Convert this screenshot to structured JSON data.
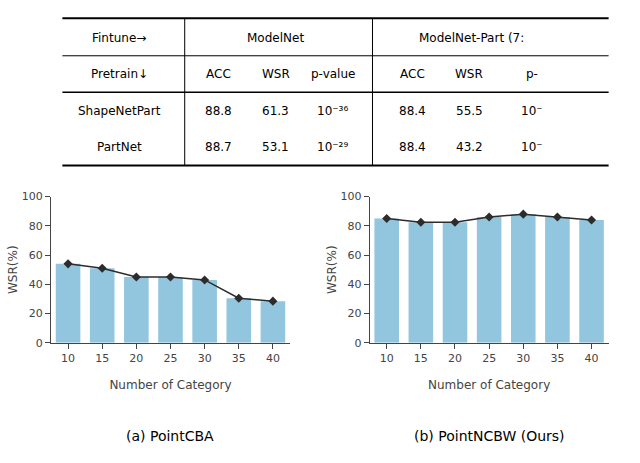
{
  "chart_data": [
    {
      "type": "table",
      "header_rows": [
        [
          "Fintune→",
          "ModelNet",
          "ModelNet-Part (7:"
        ],
        [
          "Pretrain↓",
          "ACC",
          "WSR",
          "p-value",
          "ACC",
          "WSR",
          "p-"
        ]
      ],
      "rows": [
        [
          "ShapeNetPart",
          "88.8",
          "61.3",
          "10⁻³⁶",
          "88.4",
          "55.5",
          "10⁻"
        ],
        [
          "PartNet",
          "88.7",
          "53.1",
          "10⁻²⁹",
          "88.4",
          "43.2",
          "10⁻"
        ]
      ]
    },
    {
      "type": "bar",
      "title": "(a) PointCBA",
      "xlabel": "Number of Category",
      "ylabel": "WSR(%)",
      "categories": [
        10,
        15,
        20,
        25,
        30,
        35,
        40
      ],
      "series": [
        {
          "type": "bar",
          "color": "#92C5DE",
          "values": [
            54.0,
            51.0,
            45.0,
            45.0,
            43.0,
            30.5,
            28.5
          ]
        },
        {
          "type": "line",
          "color": "#2c2c2c",
          "marker": "diamond",
          "values": [
            54.0,
            51.0,
            45.0,
            45.0,
            43.0,
            30.5,
            28.5
          ]
        }
      ],
      "ylim": [
        0,
        100
      ],
      "yticks": [
        0,
        20,
        40,
        60,
        80,
        100
      ],
      "grid": false
    },
    {
      "type": "bar",
      "title": "(b) PointNCBW (Ours)",
      "xlabel": "Number of Category",
      "ylabel": "WSR(%)",
      "categories": [
        10,
        15,
        20,
        25,
        30,
        35,
        40
      ],
      "series": [
        {
          "type": "bar",
          "color": "#92C5DE",
          "values": [
            85.0,
            82.5,
            82.5,
            86.0,
            88.0,
            86.0,
            84.0
          ]
        },
        {
          "type": "line",
          "color": "#2c2c2c",
          "marker": "diamond",
          "values": [
            85.0,
            82.5,
            82.5,
            86.0,
            88.0,
            86.0,
            84.0
          ]
        }
      ],
      "ylim": [
        0,
        100
      ],
      "yticks": [
        0,
        20,
        40,
        60,
        80,
        100
      ],
      "grid": false
    }
  ]
}
